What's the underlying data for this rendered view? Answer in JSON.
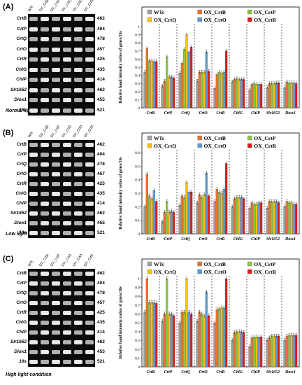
{
  "figure": {
    "lane_labels": [
      "WTc",
      "OX_CrtB",
      "OX_CrtP",
      "OX_CrtQ",
      "OX_CrtO",
      "OX_CrtR"
    ],
    "gene_labels": [
      "CrtB",
      "CrtP",
      "CrtQ",
      "CrtO",
      "CrtR",
      "ChlG",
      "ChlP",
      "Slr1652",
      "Diox1",
      "16s"
    ],
    "band_sizes": [
      "462",
      "404",
      "478",
      "457",
      "425",
      "435",
      "414",
      "462",
      "455",
      "521"
    ],
    "panels": [
      {
        "label": "(A)",
        "condition": "Normal light condition"
      },
      {
        "label": "(B)",
        "condition": "Low light condition"
      },
      {
        "label": "(C)",
        "condition": "High light condition"
      }
    ]
  },
  "chart_data": [
    {
      "type": "bar",
      "title": "",
      "xlabel": "",
      "ylabel": "Relative band intensity ratios of genes/16s",
      "ylim": [
        0,
        1.0
      ],
      "yticks": [
        "0",
        "0.1",
        "0.2",
        "0.3",
        "0.4",
        "0.5",
        "0.6",
        "0.7",
        "0.8",
        "0.9",
        "1"
      ],
      "grid": false,
      "legend_position": "top",
      "categories": [
        "CrtB",
        "CrtP",
        "CrtQ",
        "CrtO",
        "CrtR",
        "ChlG",
        "ChlP",
        "Slr1652",
        "Diox1"
      ],
      "series": [
        {
          "name": "WTc",
          "color": "#a0a0a0",
          "values": [
            0.44,
            0.27,
            0.43,
            0.33,
            0.24,
            0.32,
            0.22,
            0.25,
            0.25
          ]
        },
        {
          "name": "OX_CrtB",
          "color": "#e8732a",
          "values": [
            0.73,
            0.33,
            0.55,
            0.44,
            0.41,
            0.35,
            0.29,
            0.3,
            0.32
          ]
        },
        {
          "name": "OX_CrtP",
          "color": "#8cc63f",
          "values": [
            0.58,
            0.63,
            0.72,
            0.44,
            0.44,
            0.36,
            0.3,
            0.3,
            0.31
          ]
        },
        {
          "name": "OX_CrtQ",
          "color": "#ffc000",
          "values": [
            0.58,
            0.38,
            0.9,
            0.44,
            0.43,
            0.35,
            0.29,
            0.3,
            0.31
          ]
        },
        {
          "name": "OX_CrtO",
          "color": "#5b9bd5",
          "values": [
            0.57,
            0.38,
            0.69,
            0.69,
            0.44,
            0.35,
            0.29,
            0.31,
            0.31
          ]
        },
        {
          "name": "OX_CrtR",
          "color": "#e31a1c",
          "values": [
            0.57,
            0.37,
            0.75,
            0.45,
            0.7,
            0.35,
            0.29,
            0.31,
            0.3
          ]
        }
      ]
    },
    {
      "type": "bar",
      "title": "",
      "xlabel": "",
      "ylabel": "Relative band intensity ratios of genes/16s",
      "ylim": [
        0,
        0.6
      ],
      "yticks": [
        "0",
        "0.1",
        "0.2",
        "0.3",
        "0.4",
        "0.5",
        "0.6"
      ],
      "grid": false,
      "legend_position": "top",
      "categories": [
        "CrtB",
        "CrtP",
        "CrtQ",
        "CrtO",
        "CrtR",
        "ChlG",
        "ChlP",
        "Slr1652",
        "Diox1"
      ],
      "series": [
        {
          "name": "WTc",
          "color": "#a0a0a0",
          "values": [
            0.2,
            0.09,
            0.21,
            0.23,
            0.24,
            0.2,
            0.19,
            0.19,
            0.2
          ]
        },
        {
          "name": "OX_CrtB",
          "color": "#e8732a",
          "values": [
            0.44,
            0.16,
            0.28,
            0.29,
            0.33,
            0.26,
            0.23,
            0.24,
            0.24
          ]
        },
        {
          "name": "OX_CrtP",
          "color": "#8cc63f",
          "values": [
            0.28,
            0.24,
            0.27,
            0.27,
            0.31,
            0.27,
            0.22,
            0.24,
            0.23
          ]
        },
        {
          "name": "OX_CrtQ",
          "color": "#ffc000",
          "values": [
            0.26,
            0.16,
            0.38,
            0.29,
            0.3,
            0.27,
            0.22,
            0.24,
            0.23
          ]
        },
        {
          "name": "OX_CrtO",
          "color": "#5b9bd5",
          "values": [
            0.32,
            0.17,
            0.31,
            0.45,
            0.33,
            0.27,
            0.23,
            0.24,
            0.22
          ]
        },
        {
          "name": "OX_CrtR",
          "color": "#e31a1c",
          "values": [
            0.24,
            0.16,
            0.31,
            0.28,
            0.52,
            0.26,
            0.23,
            0.23,
            0.22
          ]
        }
      ]
    },
    {
      "type": "bar",
      "title": "",
      "xlabel": "",
      "ylabel": "Relative band intensity ratios of genes/16s",
      "ylim": [
        0,
        1.0
      ],
      "yticks": [
        "0",
        "0.1",
        "0.2",
        "0.3",
        "0.4",
        "0.5",
        "0.6",
        "0.7",
        "0.8",
        "0.9",
        "1"
      ],
      "grid": false,
      "legend_position": "top",
      "categories": [
        "CrtB",
        "CrtP",
        "CrtQ",
        "CrtO",
        "CrtR",
        "ChlG",
        "ChlP",
        "Slr1652",
        "Diox1"
      ],
      "series": [
        {
          "name": "WTc",
          "color": "#a0a0a0",
          "values": [
            0.62,
            0.52,
            0.5,
            0.52,
            0.5,
            0.3,
            0.23,
            0.3,
            0.3
          ]
        },
        {
          "name": "OX_CrtB",
          "color": "#e8732a",
          "values": [
            1.0,
            0.6,
            0.62,
            0.62,
            0.65,
            0.39,
            0.33,
            0.33,
            0.35
          ]
        },
        {
          "name": "OX_CrtP",
          "color": "#8cc63f",
          "values": [
            0.73,
            1.0,
            0.62,
            0.6,
            0.66,
            0.4,
            0.34,
            0.35,
            0.36
          ]
        },
        {
          "name": "OX_CrtQ",
          "color": "#ffc000",
          "values": [
            0.73,
            0.6,
            1.0,
            0.58,
            0.67,
            0.4,
            0.34,
            0.35,
            0.36
          ]
        },
        {
          "name": "OX_CrtO",
          "color": "#5b9bd5",
          "values": [
            0.73,
            0.6,
            0.62,
            0.85,
            0.67,
            0.4,
            0.34,
            0.35,
            0.36
          ]
        },
        {
          "name": "OX_CrtR",
          "color": "#e31a1c",
          "values": [
            0.72,
            0.58,
            0.6,
            0.58,
            1.0,
            0.39,
            0.34,
            0.35,
            0.36
          ]
        }
      ]
    }
  ]
}
